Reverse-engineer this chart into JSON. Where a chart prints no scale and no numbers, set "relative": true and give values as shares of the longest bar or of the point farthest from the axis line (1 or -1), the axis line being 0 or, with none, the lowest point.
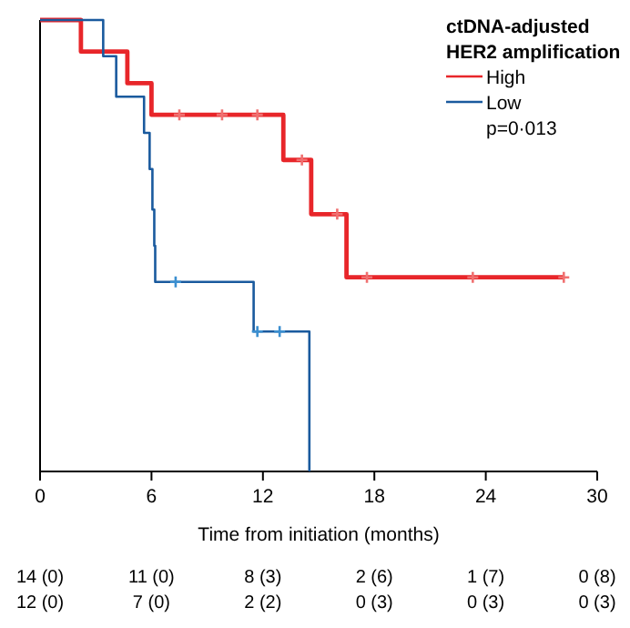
{
  "chart_data": {
    "type": "step",
    "relative": true,
    "xlabel": "Time from initiation (months)",
    "legend_title": "ctDNA-adjusted HER2 amplification",
    "legend": "top right",
    "xlim": [
      0,
      30
    ],
    "xticks": [
      0,
      6,
      12,
      18,
      24,
      30
    ],
    "series": [
      {
        "name": "High",
        "color": "#e8262a",
        "x": [
          0,
          2.2,
          4.7,
          6.0,
          13.1,
          14.6,
          16.5,
          28.2
        ],
        "values": [
          1,
          0.93,
          0.86,
          0.79,
          0.69,
          0.57,
          0.43,
          0.43
        ]
      },
      {
        "name": "Low",
        "color": "#1a5a9e",
        "x": [
          0,
          3.4,
          4.1,
          5.6,
          5.9,
          6.05,
          6.15,
          6.2,
          11.5,
          14.5
        ],
        "values": [
          1,
          0.92,
          0.83,
          0.75,
          0.67,
          0.58,
          0.5,
          0.42,
          0.31,
          0
        ]
      },
      {
        "type": "scatter",
        "marker": "cross",
        "color": "#f07070",
        "x": [
          7.5,
          9.8,
          11.7,
          14.1,
          16.0,
          17.6,
          23.3,
          28.2
        ],
        "values": [
          0.79,
          0.79,
          0.79,
          0.69,
          0.57,
          0.43,
          0.43,
          0.43
        ]
      },
      {
        "type": "scatter",
        "marker": "cross",
        "color": "#3b8fd0",
        "x": [
          7.3,
          11.7,
          12.9
        ],
        "values": [
          0.42,
          0.31,
          0.31
        ]
      }
    ],
    "annotations": [
      "p=0·013",
      "14 (0)",
      "11 (0)",
      "8 (3)",
      "2 (6)",
      "1 (7)",
      "0 (8)",
      "12 (0)",
      "7 (0)",
      "2 (2)",
      "0 (3)",
      "0 (3)",
      "0 (3)"
    ]
  }
}
